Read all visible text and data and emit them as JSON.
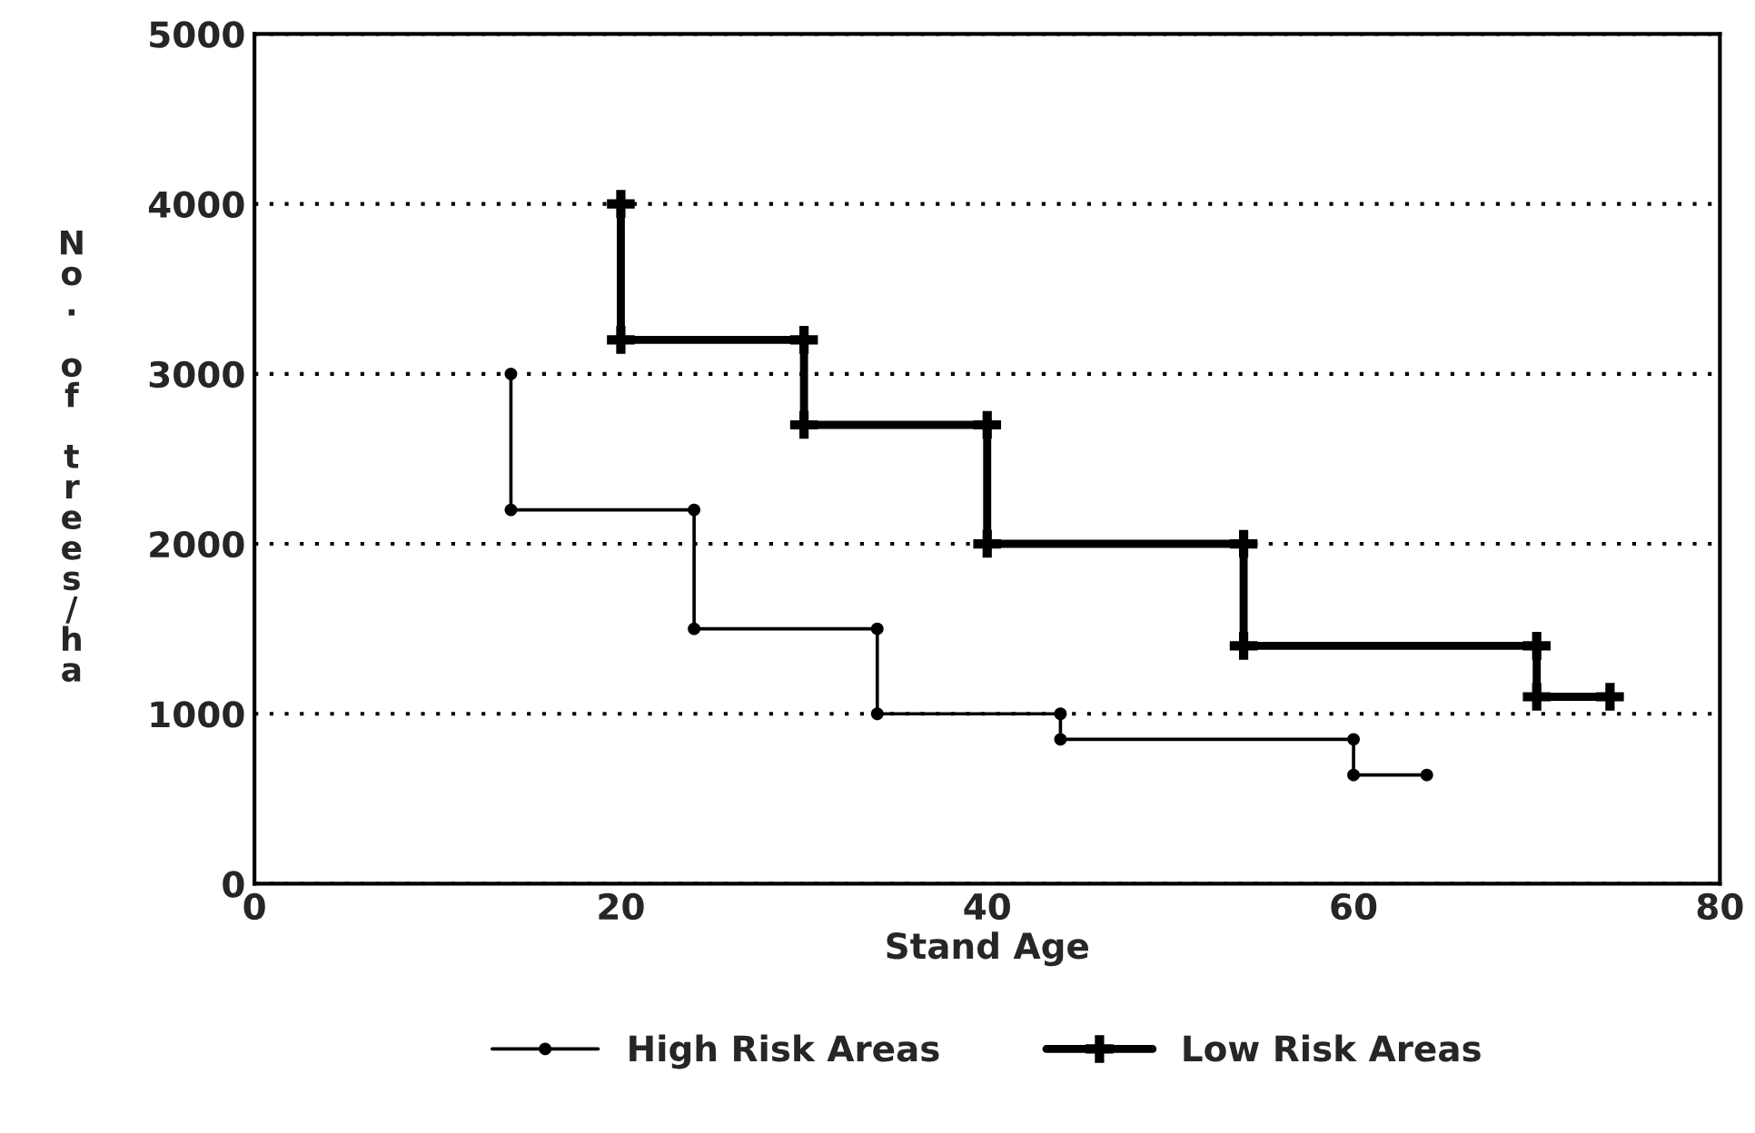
{
  "chart_data": {
    "type": "line",
    "xlabel": "Stand Age",
    "ylabel": "No. of trees/ha",
    "xlim": [
      0,
      80
    ],
    "xticks": [
      0,
      20,
      40,
      60,
      80
    ],
    "ylim": [
      0,
      5000
    ],
    "yticks": [
      0,
      1000,
      2000,
      3000,
      4000,
      5000
    ],
    "grid": "y",
    "legend": "bottom",
    "series": [
      {
        "name": "High Risk Areas",
        "color": "#000000",
        "marker": "circle",
        "x": [
          14,
          14,
          24,
          24,
          34,
          34,
          44,
          44,
          60,
          60,
          64
        ],
        "values": [
          3000,
          2200,
          2200,
          1500,
          1500,
          1000,
          1000,
          850,
          850,
          640,
          640
        ]
      },
      {
        "name": "Low Risk Areas",
        "color": "#000000",
        "marker": "cross",
        "x": [
          20,
          20,
          30,
          30,
          40,
          40,
          54,
          54,
          70,
          70,
          74
        ],
        "values": [
          4000,
          3200,
          3200,
          2700,
          2700,
          2000,
          2000,
          1400,
          1400,
          1100,
          1100
        ]
      }
    ]
  }
}
